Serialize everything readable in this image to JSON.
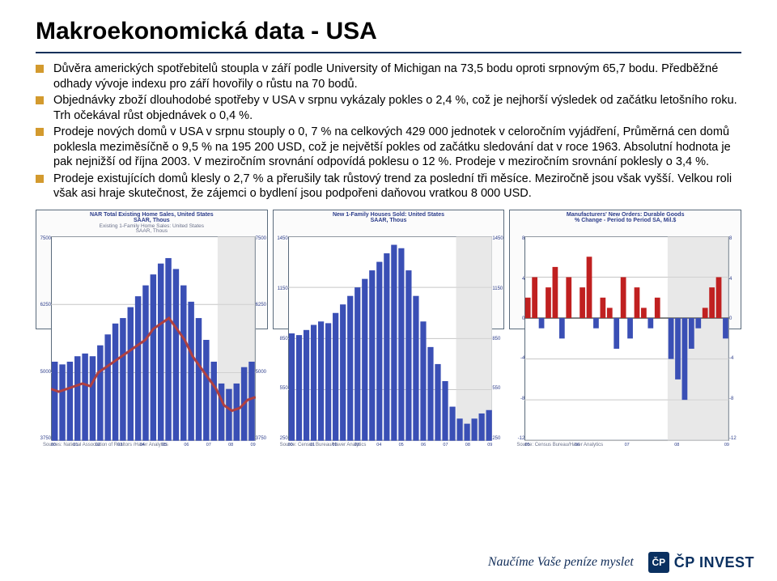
{
  "title": "Makroekonomická data - USA",
  "bullets": [
    "Důvěra amerických spotřebitelů stoupla v září podle University of Michigan na 73,5 bodu oproti srpnovým 65,7 bodu. Předběžné odhady vývoje indexu pro září hovořily o růstu na 70 bodů.",
    "Objednávky zboží dlouhodobé spotřeby v USA v srpnu vykázaly pokles o 2,4 %, což je nejhorší výsledek od začátku letošního roku. Trh očekával růst objednávek o 0,4 %.",
    "Prodeje nových domů v USA v srpnu stouply o 0, 7 % na celkových 429 000 jednotek v celoročním vyjádření, Průměrná cen domů poklesla meziměsíčně o 9,5 % na 195 200 USD, což je největší pokles od začátku sledování dat v roce 1963. Absolutní hodnota je pak nejnižší od října 2003. V meziročním srovnání odpovídá poklesu o 12 %. Prodeje v meziročním srovnání poklesly o 3,4 %.",
    "Prodeje existujících domů klesly o 2,7 % a přerušily tak růstový trend za poslední tři měsíce. Meziročně jsou však vyšší. Velkou roli však asi hraje skutečnost, že zájemci o bydlení jsou podpořeni daňovou vratkou 8 000 USD."
  ],
  "colors": {
    "bullet": "#d39a2e",
    "title_underline": "#10305a",
    "text": "#000000",
    "chart_border": "#5a6b7c",
    "chart_title": "#2b3c8a",
    "chart_sub": "#6a718a",
    "bar_fill": "#3a4fb5",
    "bar_red": "#c02020",
    "line_color": "#b04040",
    "grid": "#c6c6c6",
    "shade": "#d9d9d9",
    "logo_bg": "#0a3060"
  },
  "chart1": {
    "title_l1": "NAR Total Existing Home Sales, United States",
    "title_l2": "SAAR, Thous",
    "sub_l1": "Existing 1-Family Home Sales: United States",
    "sub_l2": "SAAR, Thous",
    "type": "bar+line",
    "ylim": [
      3750,
      7500
    ],
    "ytick_step": 1250,
    "yticks": [
      "7500",
      "6250",
      "5000",
      "3750"
    ],
    "y2lim": [
      3750,
      7500
    ],
    "y2ticks": [
      "7500",
      "6250",
      "5000",
      "3750"
    ],
    "x_years": [
      "00",
      "01",
      "02",
      "03",
      "04",
      "05",
      "06",
      "07",
      "08",
      "09"
    ],
    "bars": [
      5200,
      5150,
      5200,
      5300,
      5350,
      5300,
      5500,
      5700,
      5900,
      6000,
      6200,
      6400,
      6600,
      6800,
      7000,
      7100,
      6900,
      6600,
      6300,
      6000,
      5600,
      5200,
      4800,
      4700,
      4800,
      5100,
      5200
    ],
    "line": [
      4700,
      4650,
      4700,
      4750,
      4800,
      4750,
      5000,
      5100,
      5200,
      5300,
      5400,
      5500,
      5600,
      5800,
      5900,
      6000,
      5800,
      5600,
      5300,
      5100,
      4900,
      4700,
      4400,
      4300,
      4350,
      4500,
      4550
    ],
    "shade_from_idx": 22,
    "bar_color": "#3a4fb5",
    "line_color": "#b04040",
    "source": "Sources: National Association of Realtors /Haver Analytics"
  },
  "chart2": {
    "title_l1": "New 1-Family Houses Sold: United States",
    "title_l2": "SAAR, Thous",
    "type": "bar",
    "ylim": [
      250,
      1450
    ],
    "ytick_step": 300,
    "yticks": [
      "1450",
      "1150",
      "850",
      "550",
      "250"
    ],
    "y2ticks": [
      "1450",
      "1150",
      "850",
      "550",
      "250"
    ],
    "x_years": [
      "00",
      "01",
      "02",
      "03",
      "04",
      "05",
      "06",
      "07",
      "08",
      "09"
    ],
    "bars": [
      880,
      870,
      900,
      930,
      950,
      940,
      1000,
      1050,
      1100,
      1150,
      1200,
      1250,
      1300,
      1350,
      1400,
      1380,
      1250,
      1100,
      950,
      800,
      700,
      600,
      450,
      380,
      350,
      380,
      410,
      430
    ],
    "shade_from_idx": 23,
    "bar_color": "#3a4fb5",
    "source": "Source: Census Bureau/Haver Analytics"
  },
  "chart3": {
    "title_l1": "Manufacturers' New Orders: Durable Goods",
    "title_l2": "% Change - Period to Period   SA, Mil.$",
    "type": "bar-diverging",
    "ylim": [
      -12,
      8
    ],
    "ytick_step": 4,
    "yticks": [
      "8",
      "4",
      "0",
      "-4",
      "-8",
      "-12"
    ],
    "y2ticks": [
      "8",
      "4",
      "0",
      "-4",
      "-8",
      "-12"
    ],
    "x_years": [
      "05",
      "06",
      "07",
      "08",
      "09"
    ],
    "bars": [
      2,
      4,
      -1,
      3,
      5,
      -2,
      4,
      0,
      3,
      6,
      -1,
      2,
      1,
      -3,
      4,
      -2,
      3,
      1,
      -1,
      2,
      0,
      -4,
      -6,
      -8,
      -3,
      -1,
      1,
      3,
      4,
      -2
    ],
    "pos_color": "#c02020",
    "neg_color": "#c02020",
    "alt_color": "#3a4fb5",
    "colors_seq": [
      "r",
      "r",
      "b",
      "r",
      "r",
      "b",
      "r",
      "b",
      "r",
      "r",
      "b",
      "r",
      "r",
      "b",
      "r",
      "b",
      "r",
      "r",
      "b",
      "r",
      "b",
      "b",
      "b",
      "b",
      "b",
      "b",
      "r",
      "r",
      "r",
      "b"
    ],
    "shade_from_idx": 21,
    "source": "Source: Census Bureau/Haver Analytics"
  },
  "footer": {
    "slogan": "Naučíme Vaše peníze myslet",
    "logo_mark": "ČP",
    "logo_text": "ČP INVEST"
  }
}
